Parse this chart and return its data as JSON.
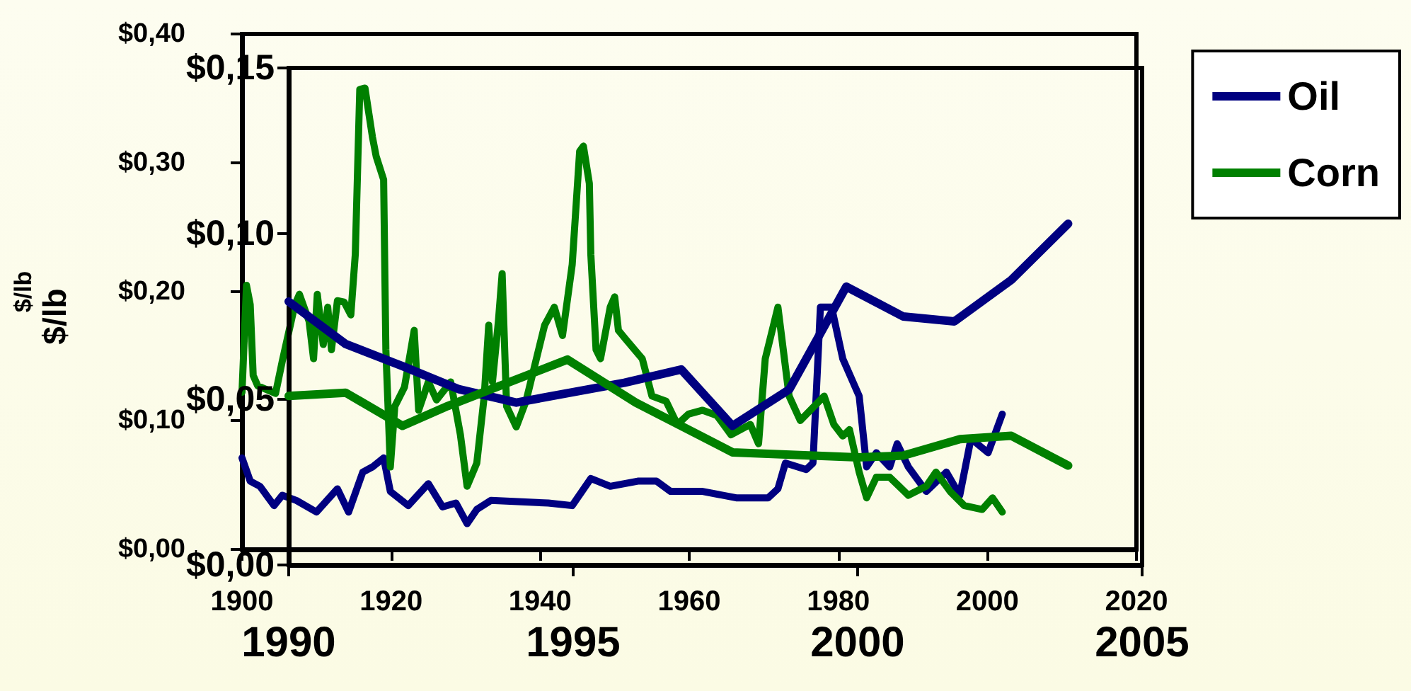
{
  "chart_data": [
    {
      "type": "line",
      "ylabel": "$/lb",
      "xlim": [
        1900,
        2020
      ],
      "xticks": [
        1900,
        1920,
        1940,
        1960,
        1980,
        2000,
        2020
      ],
      "ylim": [
        0,
        0.4
      ],
      "yticks": [
        {
          "value": 0,
          "label": "$0,00"
        },
        {
          "value": 0.1,
          "label": "$0,10"
        },
        {
          "value": 0.2,
          "label": "$0,20"
        },
        {
          "value": 0.3,
          "label": "$0,30"
        },
        {
          "value": 0.4,
          "label": "$0,40"
        }
      ],
      "grid": false,
      "legend": false,
      "marker": "none",
      "line_style": "solid",
      "series": [
        {
          "color": "#000080",
          "x": [
            1900.0,
            1901.1,
            1902.4,
            1904.3,
            1905.4,
            1907.3,
            1910.0,
            1912.8,
            1914.3,
            1916.2,
            1917.5,
            1919.0,
            1919.9,
            1922.3,
            1925.0,
            1926.9,
            1928.7,
            1930.2,
            1931.5,
            1933.4,
            1941.1,
            1944.3,
            1946.8,
            1949.4,
            1953.1,
            1955.6,
            1957.5,
            1961.8,
            1966.3,
            1970.6,
            1971.9,
            1972.9,
            1975.7,
            1976.6,
            1977.6,
            1979.1,
            1980.6,
            1982.8,
            1983.8,
            1985.1,
            1986.9,
            1987.9,
            1989.4,
            1991.8,
            1994.5,
            1996.3,
            1997.8,
            2000.1,
            2002.0
          ],
          "values": [
            0.071,
            0.053,
            0.049,
            0.034,
            0.042,
            0.038,
            0.029,
            0.047,
            0.029,
            0.06,
            0.064,
            0.071,
            0.045,
            0.034,
            0.051,
            0.033,
            0.036,
            0.02,
            0.031,
            0.038,
            0.036,
            0.034,
            0.055,
            0.049,
            0.053,
            0.053,
            0.045,
            0.045,
            0.04,
            0.04,
            0.047,
            0.067,
            0.062,
            0.067,
            0.188,
            0.188,
            0.148,
            0.119,
            0.064,
            0.075,
            0.064,
            0.082,
            0.064,
            0.045,
            0.06,
            0.042,
            0.086,
            0.075,
            0.105
          ]
        },
        {
          "color": "#008000",
          "x": [
            1900.0,
            1900.6,
            1901.1,
            1901.5,
            1902.1,
            1904.5,
            1905.4,
            1907.1,
            1907.7,
            1909.0,
            1909.6,
            1910.1,
            1910.9,
            1911.5,
            1912.0,
            1912.8,
            1913.7,
            1914.6,
            1915.2,
            1915.8,
            1916.5,
            1917.5,
            1918.0,
            1919.0,
            1919.3,
            1919.9,
            1920.5,
            1921.8,
            1923.1,
            1923.7,
            1925.0,
            1926.1,
            1928.0,
            1929.3,
            1930.2,
            1931.5,
            1932.5,
            1933.1,
            1933.6,
            1934.4,
            1934.9,
            1935.5,
            1936.8,
            1938.1,
            1940.6,
            1941.9,
            1943.0,
            1944.3,
            1945.3,
            1945.8,
            1946.6,
            1946.8,
            1947.5,
            1948.1,
            1949.4,
            1950.0,
            1950.5,
            1951.5,
            1953.7,
            1955.0,
            1956.9,
            1958.4,
            1959.9,
            1961.8,
            1963.7,
            1965.6,
            1968.2,
            1969.3,
            1970.2,
            1971.9,
            1973.4,
            1974.9,
            1978.1,
            1979.4,
            1980.6,
            1981.5,
            1982.8,
            1983.8,
            1985.1,
            1986.9,
            1989.4,
            1991.8,
            1993.1,
            1995.0,
            1996.9,
            1999.3,
            2000.7,
            2002.0
          ],
          "values": [
            0.122,
            0.205,
            0.19,
            0.135,
            0.127,
            0.121,
            0.146,
            0.19,
            0.198,
            0.177,
            0.148,
            0.198,
            0.159,
            0.188,
            0.155,
            0.193,
            0.192,
            0.182,
            0.229,
            0.357,
            0.358,
            0.32,
            0.305,
            0.287,
            0.155,
            0.064,
            0.111,
            0.126,
            0.17,
            0.108,
            0.13,
            0.116,
            0.13,
            0.089,
            0.049,
            0.067,
            0.119,
            0.174,
            0.13,
            0.177,
            0.214,
            0.111,
            0.095,
            0.115,
            0.174,
            0.188,
            0.166,
            0.221,
            0.309,
            0.313,
            0.284,
            0.229,
            0.155,
            0.148,
            0.188,
            0.196,
            0.17,
            0.163,
            0.148,
            0.119,
            0.115,
            0.097,
            0.105,
            0.108,
            0.104,
            0.089,
            0.097,
            0.082,
            0.148,
            0.188,
            0.119,
            0.1,
            0.119,
            0.097,
            0.088,
            0.093,
            0.06,
            0.04,
            0.056,
            0.056,
            0.042,
            0.049,
            0.06,
            0.045,
            0.034,
            0.031,
            0.04,
            0.029
          ]
        }
      ]
    },
    {
      "type": "line",
      "ylabel": "$/lb",
      "xlim": [
        1990,
        2005
      ],
      "xticks": [
        1990,
        1995,
        2000,
        2005
      ],
      "ylim": [
        0,
        0.15
      ],
      "yticks": [
        {
          "value": 0,
          "label": "$0,00"
        },
        {
          "value": 0.05,
          "label": "$0,05"
        },
        {
          "value": 0.1,
          "label": "$0,10"
        },
        {
          "value": 0.15,
          "label": "$0,15"
        }
      ],
      "grid": false,
      "legend": "top right",
      "marker": "none",
      "line_style": "solid",
      "series": [
        {
          "name": "Oil",
          "color": "#000080",
          "x": [
            1990.0,
            1991.0,
            1992.0,
            1993.0,
            1994.0,
            1995.9,
            1996.9,
            1997.8,
            1998.8,
            1999.8,
            2000.8,
            2001.7,
            2002.7,
            2003.7
          ],
          "values": [
            0.0795,
            0.0667,
            0.06,
            0.053,
            0.049,
            0.055,
            0.059,
            0.042,
            0.053,
            0.084,
            0.075,
            0.0735,
            0.086,
            0.103
          ]
        },
        {
          "name": "Corn",
          "color": "#008000",
          "x": [
            1990.0,
            1991.0,
            1992.0,
            1992.8,
            1994.9,
            1996.1,
            1997.8,
            2000.0,
            2000.8,
            2001.8,
            2002.7,
            2003.7
          ],
          "values": [
            0.051,
            0.052,
            0.042,
            0.048,
            0.062,
            0.049,
            0.034,
            0.0325,
            0.033,
            0.038,
            0.039,
            0.03
          ]
        }
      ]
    }
  ]
}
